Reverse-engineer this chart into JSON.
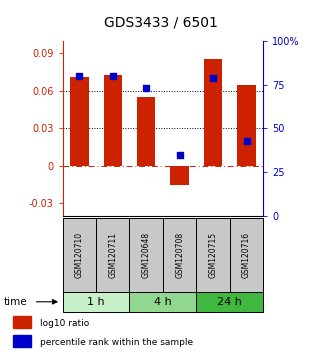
{
  "title": "GDS3433 / 6501",
  "samples": [
    "GSM120710",
    "GSM120711",
    "GSM120648",
    "GSM120708",
    "GSM120715",
    "GSM120716"
  ],
  "log10_ratio": [
    0.071,
    0.073,
    0.055,
    -0.015,
    0.085,
    0.065
  ],
  "percentile_rank": [
    80,
    80,
    73,
    35,
    79,
    43
  ],
  "groups": [
    {
      "label": "1 h",
      "indices": [
        0,
        1
      ],
      "color": "#c8f0c8"
    },
    {
      "label": "4 h",
      "indices": [
        2,
        3
      ],
      "color": "#90d890"
    },
    {
      "label": "24 h",
      "indices": [
        4,
        5
      ],
      "color": "#40b840"
    }
  ],
  "bar_color": "#cc2200",
  "dot_color": "#0000cc",
  "sample_box_color": "#c8c8c8",
  "ylim_left": [
    -0.04,
    0.1
  ],
  "ylim_right": [
    0,
    100
  ],
  "yticks_left": [
    -0.03,
    0,
    0.03,
    0.06,
    0.09
  ],
  "yticks_right": [
    0,
    25,
    50,
    75,
    100
  ],
  "hlines_black": [
    0.03,
    0.06
  ],
  "hline_red": 0,
  "bar_width": 0.55,
  "dot_size": 25,
  "title_fontsize": 10,
  "tick_fontsize": 7,
  "label_fontsize": 6.5,
  "sample_label_fontsize": 5.5,
  "group_label_fontsize": 8,
  "time_fontsize": 7.5
}
